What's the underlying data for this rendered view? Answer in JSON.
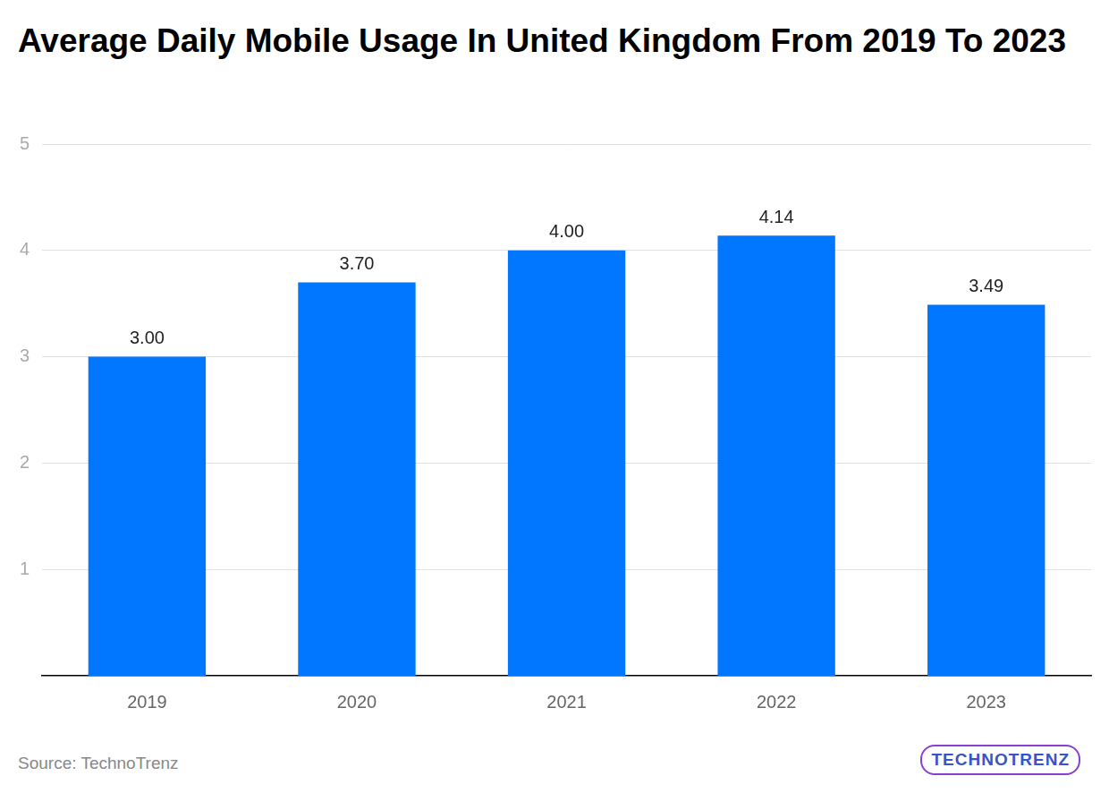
{
  "chart_data": {
    "type": "bar",
    "title": "Average Daily Mobile Usage In United Kingdom From 2019 To 2023",
    "categories": [
      "2019",
      "2020",
      "2021",
      "2022",
      "2023"
    ],
    "values": [
      3,
      3.7,
      4,
      4.14,
      3.49
    ],
    "value_labels": [
      "3.00",
      "3.70",
      "4.00",
      "4.14",
      "3.49"
    ],
    "color": "#0177ff",
    "ylim": [
      0,
      5
    ],
    "yticks": [
      1,
      2,
      3,
      4,
      5
    ],
    "grid": true,
    "data_labels": true,
    "source": "Source: TechnoTrenz",
    "logo": "TECHNOTRENZ"
  }
}
